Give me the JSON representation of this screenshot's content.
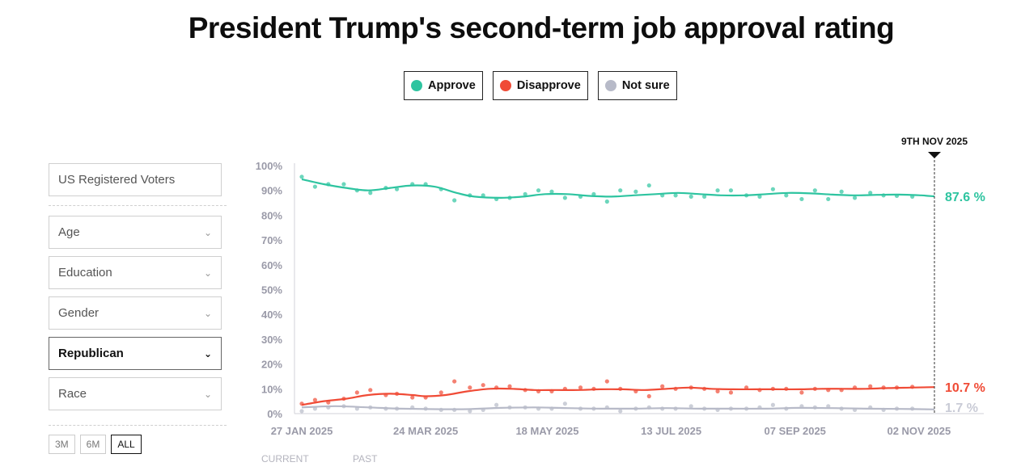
{
  "title": "President Trump's second-term job approval rating",
  "legend": [
    {
      "label": "Approve",
      "color": "#2ec4a0"
    },
    {
      "label": "Disapprove",
      "color": "#f04b36"
    },
    {
      "label": "Not sure",
      "color": "#b7bac8"
    }
  ],
  "filters": {
    "population": "US Registered Voters",
    "dropdowns": [
      {
        "label": "Age",
        "active": false
      },
      {
        "label": "Education",
        "active": false
      },
      {
        "label": "Gender",
        "active": false
      },
      {
        "label": "Republican",
        "active": true
      },
      {
        "label": "Race",
        "active": false
      }
    ]
  },
  "range_buttons": [
    {
      "label": "3M",
      "selected": false
    },
    {
      "label": "6M",
      "selected": false
    },
    {
      "label": "ALL",
      "selected": true
    }
  ],
  "chart_data": {
    "type": "line",
    "title": "President Trump's second-term job approval rating",
    "ylim": [
      0,
      100
    ],
    "y_ticks": [
      "0%",
      "10%",
      "20%",
      "30%",
      "40%",
      "50%",
      "60%",
      "70%",
      "80%",
      "90%",
      "100%"
    ],
    "x_ticks": [
      {
        "label": "27 JAN 2025",
        "day": 0
      },
      {
        "label": "24 MAR 2025",
        "day": 56
      },
      {
        "label": "18 MAY 2025",
        "day": 111
      },
      {
        "label": "13 JUL 2025",
        "day": 167
      },
      {
        "label": "07 SEP 2025",
        "day": 223
      },
      {
        "label": "02 NOV 2025",
        "day": 279
      }
    ],
    "x_range_days": [
      0,
      286
    ],
    "marker": {
      "label": "9TH NOV 2025",
      "day": 286
    },
    "end_labels": [
      "87.6 %",
      "10.7 %",
      "1.7 %"
    ],
    "series": [
      {
        "name": "Approve",
        "color": "#2ec4a0",
        "line": [
          [
            0,
            94.5
          ],
          [
            10,
            92.5
          ],
          [
            20,
            91
          ],
          [
            30,
            90
          ],
          [
            40,
            91
          ],
          [
            50,
            92
          ],
          [
            60,
            91.5
          ],
          [
            70,
            89
          ],
          [
            78,
            87.5
          ],
          [
            90,
            87
          ],
          [
            100,
            87.5
          ],
          [
            110,
            88.5
          ],
          [
            120,
            88.5
          ],
          [
            130,
            87.8
          ],
          [
            140,
            87.5
          ],
          [
            150,
            88
          ],
          [
            160,
            88.5
          ],
          [
            170,
            89
          ],
          [
            180,
            88.5
          ],
          [
            190,
            88
          ],
          [
            200,
            88
          ],
          [
            210,
            88.5
          ],
          [
            220,
            89
          ],
          [
            230,
            88.8
          ],
          [
            240,
            88.3
          ],
          [
            250,
            88
          ],
          [
            260,
            88.2
          ],
          [
            270,
            88.3
          ],
          [
            280,
            88
          ],
          [
            286,
            87.6
          ]
        ],
        "points": [
          [
            0,
            95.5
          ],
          [
            6,
            91.5
          ],
          [
            12,
            92.5
          ],
          [
            19,
            92.5
          ],
          [
            25,
            90
          ],
          [
            31,
            89
          ],
          [
            38,
            91
          ],
          [
            43,
            90.5
          ],
          [
            50,
            92.5
          ],
          [
            56,
            92.5
          ],
          [
            63,
            90.5
          ],
          [
            69,
            86
          ],
          [
            76,
            88
          ],
          [
            82,
            88
          ],
          [
            88,
            86.5
          ],
          [
            94,
            87
          ],
          [
            101,
            88.5
          ],
          [
            107,
            90
          ],
          [
            113,
            89.5
          ],
          [
            119,
            87
          ],
          [
            126,
            87.5
          ],
          [
            132,
            88.5
          ],
          [
            138,
            85.5
          ],
          [
            144,
            90
          ],
          [
            151,
            89.5
          ],
          [
            157,
            92
          ],
          [
            163,
            88
          ],
          [
            169,
            88
          ],
          [
            176,
            87.5
          ],
          [
            182,
            87.5
          ],
          [
            188,
            90
          ],
          [
            194,
            90
          ],
          [
            201,
            88
          ],
          [
            207,
            87.5
          ],
          [
            213,
            90.5
          ],
          [
            219,
            88
          ],
          [
            226,
            86.5
          ],
          [
            232,
            90
          ],
          [
            238,
            86.5
          ],
          [
            244,
            89.5
          ],
          [
            250,
            87
          ],
          [
            257,
            89
          ],
          [
            263,
            88
          ],
          [
            269,
            87.8
          ],
          [
            276,
            87.5
          ]
        ]
      },
      {
        "name": "Disapprove",
        "color": "#f04b36",
        "line": [
          [
            0,
            3.5
          ],
          [
            10,
            5
          ],
          [
            20,
            6
          ],
          [
            30,
            7.5
          ],
          [
            40,
            8
          ],
          [
            50,
            7.5
          ],
          [
            56,
            7
          ],
          [
            65,
            7.5
          ],
          [
            75,
            9
          ],
          [
            85,
            10
          ],
          [
            95,
            10
          ],
          [
            105,
            9.5
          ],
          [
            115,
            9.5
          ],
          [
            125,
            9.5
          ],
          [
            135,
            9.8
          ],
          [
            145,
            9.8
          ],
          [
            155,
            9.5
          ],
          [
            165,
            10
          ],
          [
            175,
            10.5
          ],
          [
            185,
            10
          ],
          [
            195,
            9.8
          ],
          [
            205,
            9.8
          ],
          [
            215,
            9.8
          ],
          [
            225,
            9.8
          ],
          [
            235,
            10
          ],
          [
            245,
            10
          ],
          [
            255,
            10
          ],
          [
            265,
            10.3
          ],
          [
            275,
            10.5
          ],
          [
            286,
            10.7
          ]
        ],
        "points": [
          [
            0,
            4
          ],
          [
            6,
            5.5
          ],
          [
            12,
            4.5
          ],
          [
            19,
            6
          ],
          [
            25,
            8.5
          ],
          [
            31,
            9.5
          ],
          [
            38,
            7.5
          ],
          [
            43,
            8
          ],
          [
            50,
            6.5
          ],
          [
            56,
            6.5
          ],
          [
            63,
            8.5
          ],
          [
            69,
            13
          ],
          [
            76,
            10.5
          ],
          [
            82,
            11.5
          ],
          [
            88,
            10.5
          ],
          [
            94,
            11
          ],
          [
            101,
            9.5
          ],
          [
            107,
            9
          ],
          [
            113,
            9
          ],
          [
            119,
            10
          ],
          [
            126,
            10.5
          ],
          [
            132,
            10
          ],
          [
            138,
            13
          ],
          [
            144,
            10
          ],
          [
            151,
            9
          ],
          [
            157,
            7
          ],
          [
            163,
            11
          ],
          [
            169,
            10
          ],
          [
            176,
            10.5
          ],
          [
            182,
            10
          ],
          [
            188,
            9
          ],
          [
            194,
            8.5
          ],
          [
            201,
            10.5
          ],
          [
            207,
            9.5
          ],
          [
            213,
            10
          ],
          [
            219,
            10
          ],
          [
            226,
            8.5
          ],
          [
            232,
            10
          ],
          [
            238,
            9.5
          ],
          [
            244,
            9.5
          ],
          [
            250,
            10.5
          ],
          [
            257,
            11
          ],
          [
            263,
            10.5
          ],
          [
            269,
            10.5
          ],
          [
            276,
            10.8
          ]
        ]
      },
      {
        "name": "Not sure",
        "color": "#b7bac8",
        "line": [
          [
            0,
            2.5
          ],
          [
            15,
            3
          ],
          [
            30,
            2.5
          ],
          [
            45,
            2
          ],
          [
            60,
            1.8
          ],
          [
            75,
            1.8
          ],
          [
            90,
            2.3
          ],
          [
            105,
            2.5
          ],
          [
            120,
            2.2
          ],
          [
            135,
            2
          ],
          [
            150,
            2
          ],
          [
            165,
            2.2
          ],
          [
            180,
            2
          ],
          [
            195,
            2
          ],
          [
            210,
            2
          ],
          [
            225,
            2.3
          ],
          [
            240,
            2.2
          ],
          [
            255,
            2
          ],
          [
            270,
            1.9
          ],
          [
            286,
            1.7
          ]
        ],
        "points": [
          [
            0,
            1
          ],
          [
            6,
            2
          ],
          [
            12,
            2.5
          ],
          [
            19,
            3
          ],
          [
            25,
            2
          ],
          [
            31,
            2.5
          ],
          [
            38,
            2
          ],
          [
            43,
            2
          ],
          [
            50,
            2.5
          ],
          [
            56,
            2
          ],
          [
            63,
            1.5
          ],
          [
            69,
            1.5
          ],
          [
            76,
            1
          ],
          [
            82,
            1.5
          ],
          [
            88,
            3.5
          ],
          [
            94,
            2.5
          ],
          [
            101,
            2.5
          ],
          [
            107,
            2
          ],
          [
            113,
            2
          ],
          [
            119,
            4
          ],
          [
            126,
            2
          ],
          [
            132,
            2
          ],
          [
            138,
            2.5
          ],
          [
            144,
            1
          ],
          [
            151,
            2
          ],
          [
            157,
            2.5
          ],
          [
            163,
            2
          ],
          [
            169,
            2
          ],
          [
            176,
            3
          ],
          [
            182,
            2
          ],
          [
            188,
            1.5
          ],
          [
            194,
            2
          ],
          [
            201,
            2
          ],
          [
            207,
            2.5
          ],
          [
            213,
            3.5
          ],
          [
            219,
            2
          ],
          [
            226,
            3
          ],
          [
            232,
            2.5
          ],
          [
            238,
            3
          ],
          [
            244,
            2
          ],
          [
            250,
            1.5
          ],
          [
            257,
            2.5
          ],
          [
            263,
            1.5
          ],
          [
            269,
            2
          ],
          [
            276,
            2
          ]
        ]
      }
    ]
  },
  "footer": {
    "current": "CURRENT",
    "past": "PAST"
  }
}
